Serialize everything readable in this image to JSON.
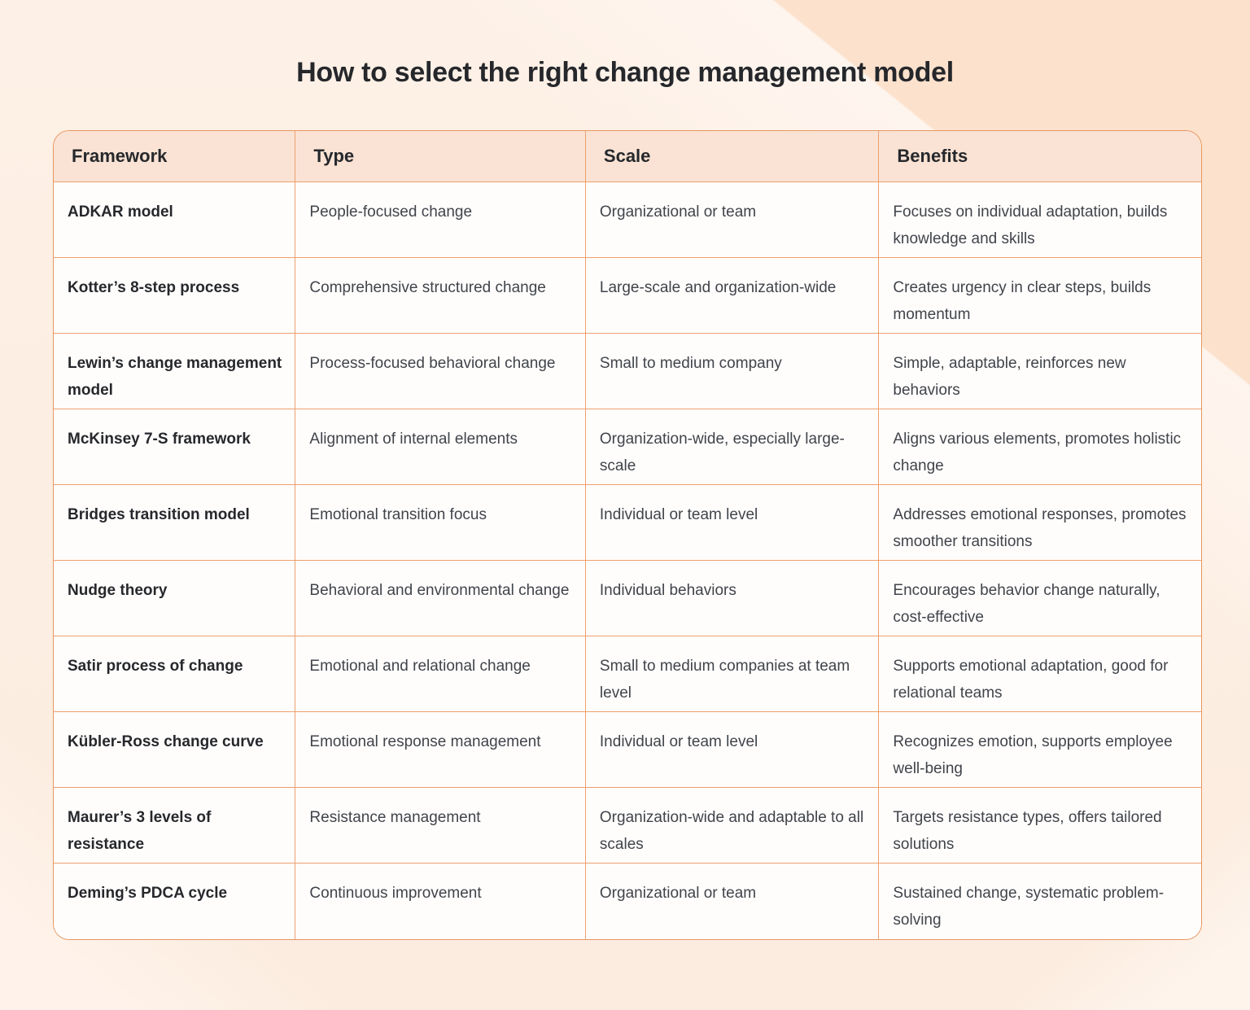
{
  "page_title": "How to select the right change management model",
  "colors": {
    "background_base": "#fdefe4",
    "background_corner": "#fce1cc",
    "table_border": "#eda06f",
    "header_bg": "#fae3d4",
    "header_text": "#26282c",
    "body_text": "#40444a"
  },
  "table": {
    "columns": [
      "Framework",
      "Type",
      "Scale",
      "Benefits"
    ],
    "rows": [
      {
        "framework": "ADKAR model",
        "type": "People-focused change",
        "scale": "Organizational or team",
        "benefits": "Focuses on individual adaptation, builds knowledge and skills"
      },
      {
        "framework": "Kotter’s 8-step process",
        "type": "Comprehensive structured change",
        "scale": "Large-scale and organization-wide",
        "benefits": "Creates urgency in clear steps, builds momentum"
      },
      {
        "framework": "Lewin’s change management model",
        "type": "Process-focused behavioral change",
        "scale": "Small to medium company",
        "benefits": "Simple, adaptable, reinforces new behaviors"
      },
      {
        "framework": "McKinsey 7-S framework",
        "type": "Alignment of internal elements",
        "scale": "Organization-wide, especially large-scale",
        "benefits": "Aligns various elements, promotes holistic change"
      },
      {
        "framework": "Bridges transition model",
        "type": "Emotional transition focus",
        "scale": "Individual or team level",
        "benefits": "Addresses emotional responses, promotes smoother transitions"
      },
      {
        "framework": "Nudge theory",
        "type": "Behavioral and environmental change",
        "scale": "Individual behaviors",
        "benefits": "Encourages behavior change naturally, cost-effective"
      },
      {
        "framework": "Satir process of change",
        "type": "Emotional and relational change",
        "scale": "Small to medium companies at team level",
        "benefits": "Supports emotional adaptation, good for relational teams"
      },
      {
        "framework": "Kübler-Ross change curve",
        "type": "Emotional response management",
        "scale": "Individual or team level",
        "benefits": "Recognizes emotion, supports employee well-being"
      },
      {
        "framework": "Maurer’s 3 levels of resistance",
        "type": "Resistance management",
        "scale": "Organization-wide and adaptable to all scales",
        "benefits": "Targets resistance types, offers tailored solutions"
      },
      {
        "framework": "Deming’s PDCA cycle",
        "type": "Continuous improvement",
        "scale": "Organizational or team",
        "benefits": "Sustained change, systematic problem-solving"
      }
    ]
  }
}
